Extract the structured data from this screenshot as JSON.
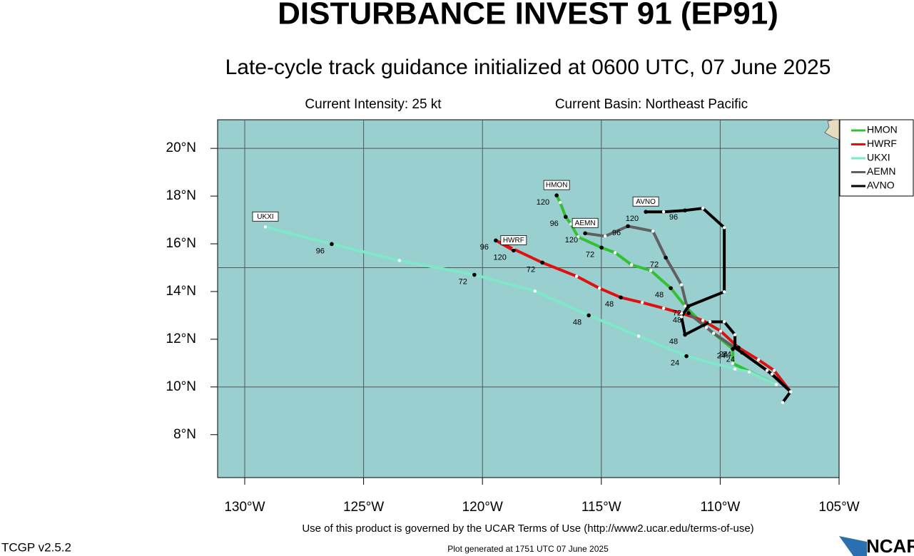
{
  "chart_data": {
    "type": "track",
    "title": "DISTURBANCE INVEST 91 (EP91)",
    "subtitle": "Late-cycle track guidance initialized at 0600 UTC, 07 June 2025",
    "intensity": "Current Intensity: 25 kt",
    "basin": "Current Basin: Northeast Pacific",
    "footer": "Use of this product is governed by the UCAR Terms of Use (http://www2.ucar.edu/terms-of-use)",
    "version": "TCGP v2.5.2",
    "generated": "Plot generated at 1751 UTC   07 June 2025",
    "logo": "NCAR",
    "xlim": [
      -131.14,
      -105
    ],
    "ylim": [
      6.2,
      21.2
    ],
    "xticks": [
      {
        "value": -130,
        "label": "130°W"
      },
      {
        "value": -125,
        "label": "125°W"
      },
      {
        "value": -120,
        "label": "120°W"
      },
      {
        "value": -115,
        "label": "115°W"
      },
      {
        "value": -110,
        "label": "110°W"
      },
      {
        "value": -105,
        "label": "105°W"
      }
    ],
    "yticks": [
      {
        "value": 8,
        "label": "8°N"
      },
      {
        "value": 10,
        "label": "10°N"
      },
      {
        "value": 12,
        "label": "12°N"
      },
      {
        "value": 14,
        "label": "14°N"
      },
      {
        "value": 16,
        "label": "16°N"
      },
      {
        "value": 18,
        "label": "18°N"
      },
      {
        "value": 20,
        "label": "20°N"
      }
    ],
    "xgrid": [
      -130,
      -125,
      -120,
      -115,
      -110
    ],
    "ygrid": [
      10,
      15,
      20
    ],
    "series": [
      {
        "name": "HMON",
        "color": "#33c033",
        "x": [
          -107.64,
          -109.47,
          -109.47,
          -110.58,
          -111.48,
          -112.08,
          -112.92,
          -113.73,
          -114.42,
          -114.99,
          -115.98,
          -116.28,
          -116.5,
          -116.73,
          -116.88
        ],
        "values": [
          10.1,
          10.99,
          11.59,
          12.49,
          13.39,
          14.14,
          14.88,
          15.12,
          15.63,
          15.84,
          16.29,
          16.83,
          17.13,
          17.73,
          18.03
        ],
        "labels": [
          null,
          null,
          "24",
          null,
          null,
          "48",
          null,
          null,
          null,
          "72",
          null,
          null,
          "96",
          null,
          "120"
        ]
      },
      {
        "name": "HWRF",
        "color": "#e01010",
        "x": [
          -107.04,
          -107.73,
          -108.39,
          -109.23,
          -109.98,
          -110.73,
          -111.63,
          -112.38,
          -113.28,
          -114.18,
          -115.08,
          -116.04,
          -117.48,
          -118.69,
          -119.44,
          -118.69
        ],
        "values": [
          9.8,
          10.69,
          11.14,
          11.65,
          12.34,
          12.79,
          13.09,
          13.3,
          13.54,
          13.75,
          14.14,
          14.64,
          15.21,
          15.78,
          16.14,
          15.72
        ],
        "labels": [
          null,
          null,
          null,
          "24",
          null,
          null,
          null,
          null,
          null,
          "48",
          null,
          null,
          "72",
          null,
          "96",
          "120"
        ]
      },
      {
        "name": "UKXI",
        "color": "#7fe8c8",
        "x": [
          -107.64,
          -108.78,
          -109.38,
          -111.42,
          -113.43,
          -115.53,
          -117.79,
          -120.34,
          -123.49,
          -126.34,
          -129.13
        ],
        "values": [
          10.1,
          10.63,
          10.75,
          11.29,
          12.13,
          13.0,
          14.02,
          14.7,
          15.3,
          15.99,
          16.71
        ],
        "labels": [
          null,
          null,
          null,
          "24",
          null,
          "48",
          null,
          "72",
          null,
          "96",
          null
        ]
      },
      {
        "name": "AEMN",
        "color": "#606060",
        "x": [
          -107.04,
          -108.03,
          -109.08,
          -110.28,
          -111.33,
          -111.63,
          -112.29,
          -112.83,
          -113.88,
          -114.84,
          -115.68
        ],
        "values": [
          9.8,
          10.69,
          11.44,
          12.25,
          13.09,
          14.28,
          15.42,
          16.53,
          16.74,
          16.32,
          16.44
        ],
        "labels": [
          null,
          null,
          "24",
          null,
          "48",
          null,
          "72",
          null,
          "96",
          null,
          "120"
        ]
      },
      {
        "name": "AVNO",
        "color": "#000000",
        "x": [
          -107.37,
          -107.04,
          -107.82,
          -109.38,
          -109.38,
          -109.83,
          -110.43,
          -111.48,
          -111.63,
          -111.33,
          -109.83,
          -109.83,
          -110.73,
          -111.48,
          -112.38,
          -113.13
        ],
        "values": [
          9.35,
          9.8,
          10.54,
          11.65,
          12.19,
          12.73,
          12.73,
          12.19,
          12.94,
          13.39,
          13.99,
          16.68,
          17.49,
          17.4,
          17.34,
          17.34
        ],
        "labels": [
          null,
          null,
          null,
          "24",
          null,
          null,
          null,
          "48",
          null,
          "72",
          null,
          null,
          null,
          "96",
          null,
          "120"
        ]
      }
    ]
  }
}
